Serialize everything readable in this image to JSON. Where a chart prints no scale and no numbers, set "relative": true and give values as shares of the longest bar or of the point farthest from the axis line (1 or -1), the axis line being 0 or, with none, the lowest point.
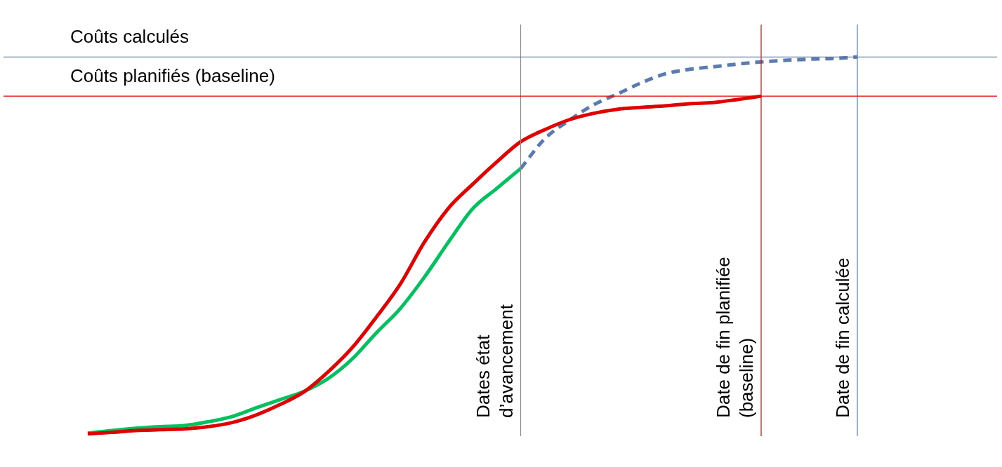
{
  "chart_data": {
    "type": "line",
    "relative": true,
    "legend": false,
    "ylim": [
      -0.006,
      1.086
    ],
    "categories": [
      null,
      null,
      null,
      null,
      null,
      null,
      null,
      null,
      null,
      null,
      null,
      null,
      null,
      null,
      null,
      null,
      null,
      null,
      null,
      null,
      null,
      null,
      null,
      null,
      null,
      null,
      null,
      null,
      null,
      null,
      null,
      null,
      null
    ],
    "series": [
      {
        "color": "#e00000",
        "values": [
          0,
          0.004,
          0.009,
          0.011,
          0.013,
          0.019,
          0.03,
          0.05,
          0.078,
          0.112,
          0.165,
          0.229,
          0.31,
          0.398,
          0.509,
          0.599,
          0.662,
          0.721,
          0.775,
          0.807,
          0.833,
          0.85,
          0.861,
          0.866,
          0.87,
          0.876,
          0.879,
          0.887,
          0.896,
          null,
          null,
          null,
          null
        ]
      },
      {
        "color": "#00c060",
        "values": [
          0.002,
          0.009,
          0.015,
          0.019,
          0.022,
          0.032,
          0.046,
          0.069,
          0.091,
          0.113,
          0.147,
          0.199,
          0.268,
          0.333,
          0.416,
          0.509,
          0.597,
          0.651,
          0.704,
          null,
          null,
          null,
          null,
          null,
          null,
          null,
          null,
          null,
          null,
          null,
          null,
          null,
          null
        ]
      },
      {
        "color": "#5b7bb0",
        "line_style": "dashed",
        "values": [
          null,
          null,
          null,
          null,
          null,
          null,
          null,
          null,
          null,
          null,
          null,
          null,
          null,
          null,
          null,
          null,
          null,
          null,
          0.704,
          0.783,
          0.831,
          0.872,
          0.901,
          0.931,
          0.955,
          0.967,
          0.974,
          0.981,
          0.987,
          0.991,
          0.994,
          0.996,
          1
        ]
      }
    ],
    "ref_lines": [
      {
        "axis": "y",
        "value": 1,
        "label": "Coûts calculés",
        "color": "#5a6f8a"
      },
      {
        "axis": "y",
        "value": 0.896,
        "label": "Coûts planifiés (baseline)",
        "color": "#e00000"
      }
    ],
    "annotations": [
      "Dates état\nd’avancement",
      "Date de fin planifiée\n(baseline)",
      "Date de fin calculée"
    ]
  }
}
